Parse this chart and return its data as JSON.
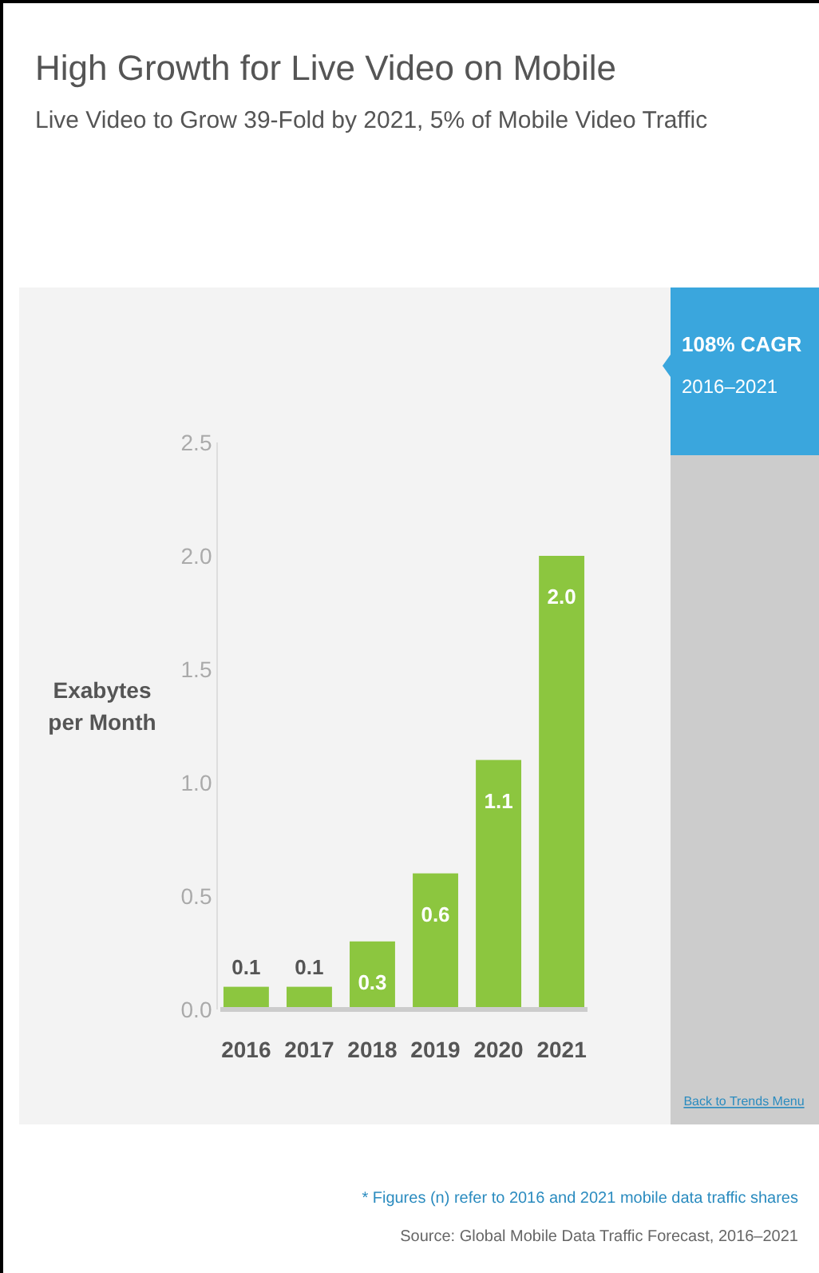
{
  "chart_data": {
    "type": "bar",
    "title": "High Growth for Live Video on Mobile",
    "subtitle": "Live Video to Grow 39-Fold by 2021, 5% of Mobile Video Traffic",
    "ylabel": "Exabytes per Month",
    "categories": [
      "2016",
      "2017",
      "2018",
      "2019",
      "2020",
      "2021"
    ],
    "values": [
      0.1,
      0.1,
      0.3,
      0.6,
      1.1,
      2.0
    ],
    "value_labels": [
      "0.1",
      "0.1",
      "0.3",
      "0.6",
      "1.1",
      "2.0"
    ],
    "color": "#8cc63f",
    "ylim": [
      0,
      2.5
    ],
    "yticks": [
      "0.0",
      "0.5",
      "1.0",
      "1.5",
      "2.0",
      "2.5"
    ],
    "grid": false,
    "annotations": [
      "108% CAGR",
      "2016–2021",
      "Back to Trends Menu",
      "* Figures (n) refer to 2016 and 2021 mobile data traffic shares",
      "Source: Global Mobile Data Traffic Forecast, 2016–2021"
    ]
  }
}
